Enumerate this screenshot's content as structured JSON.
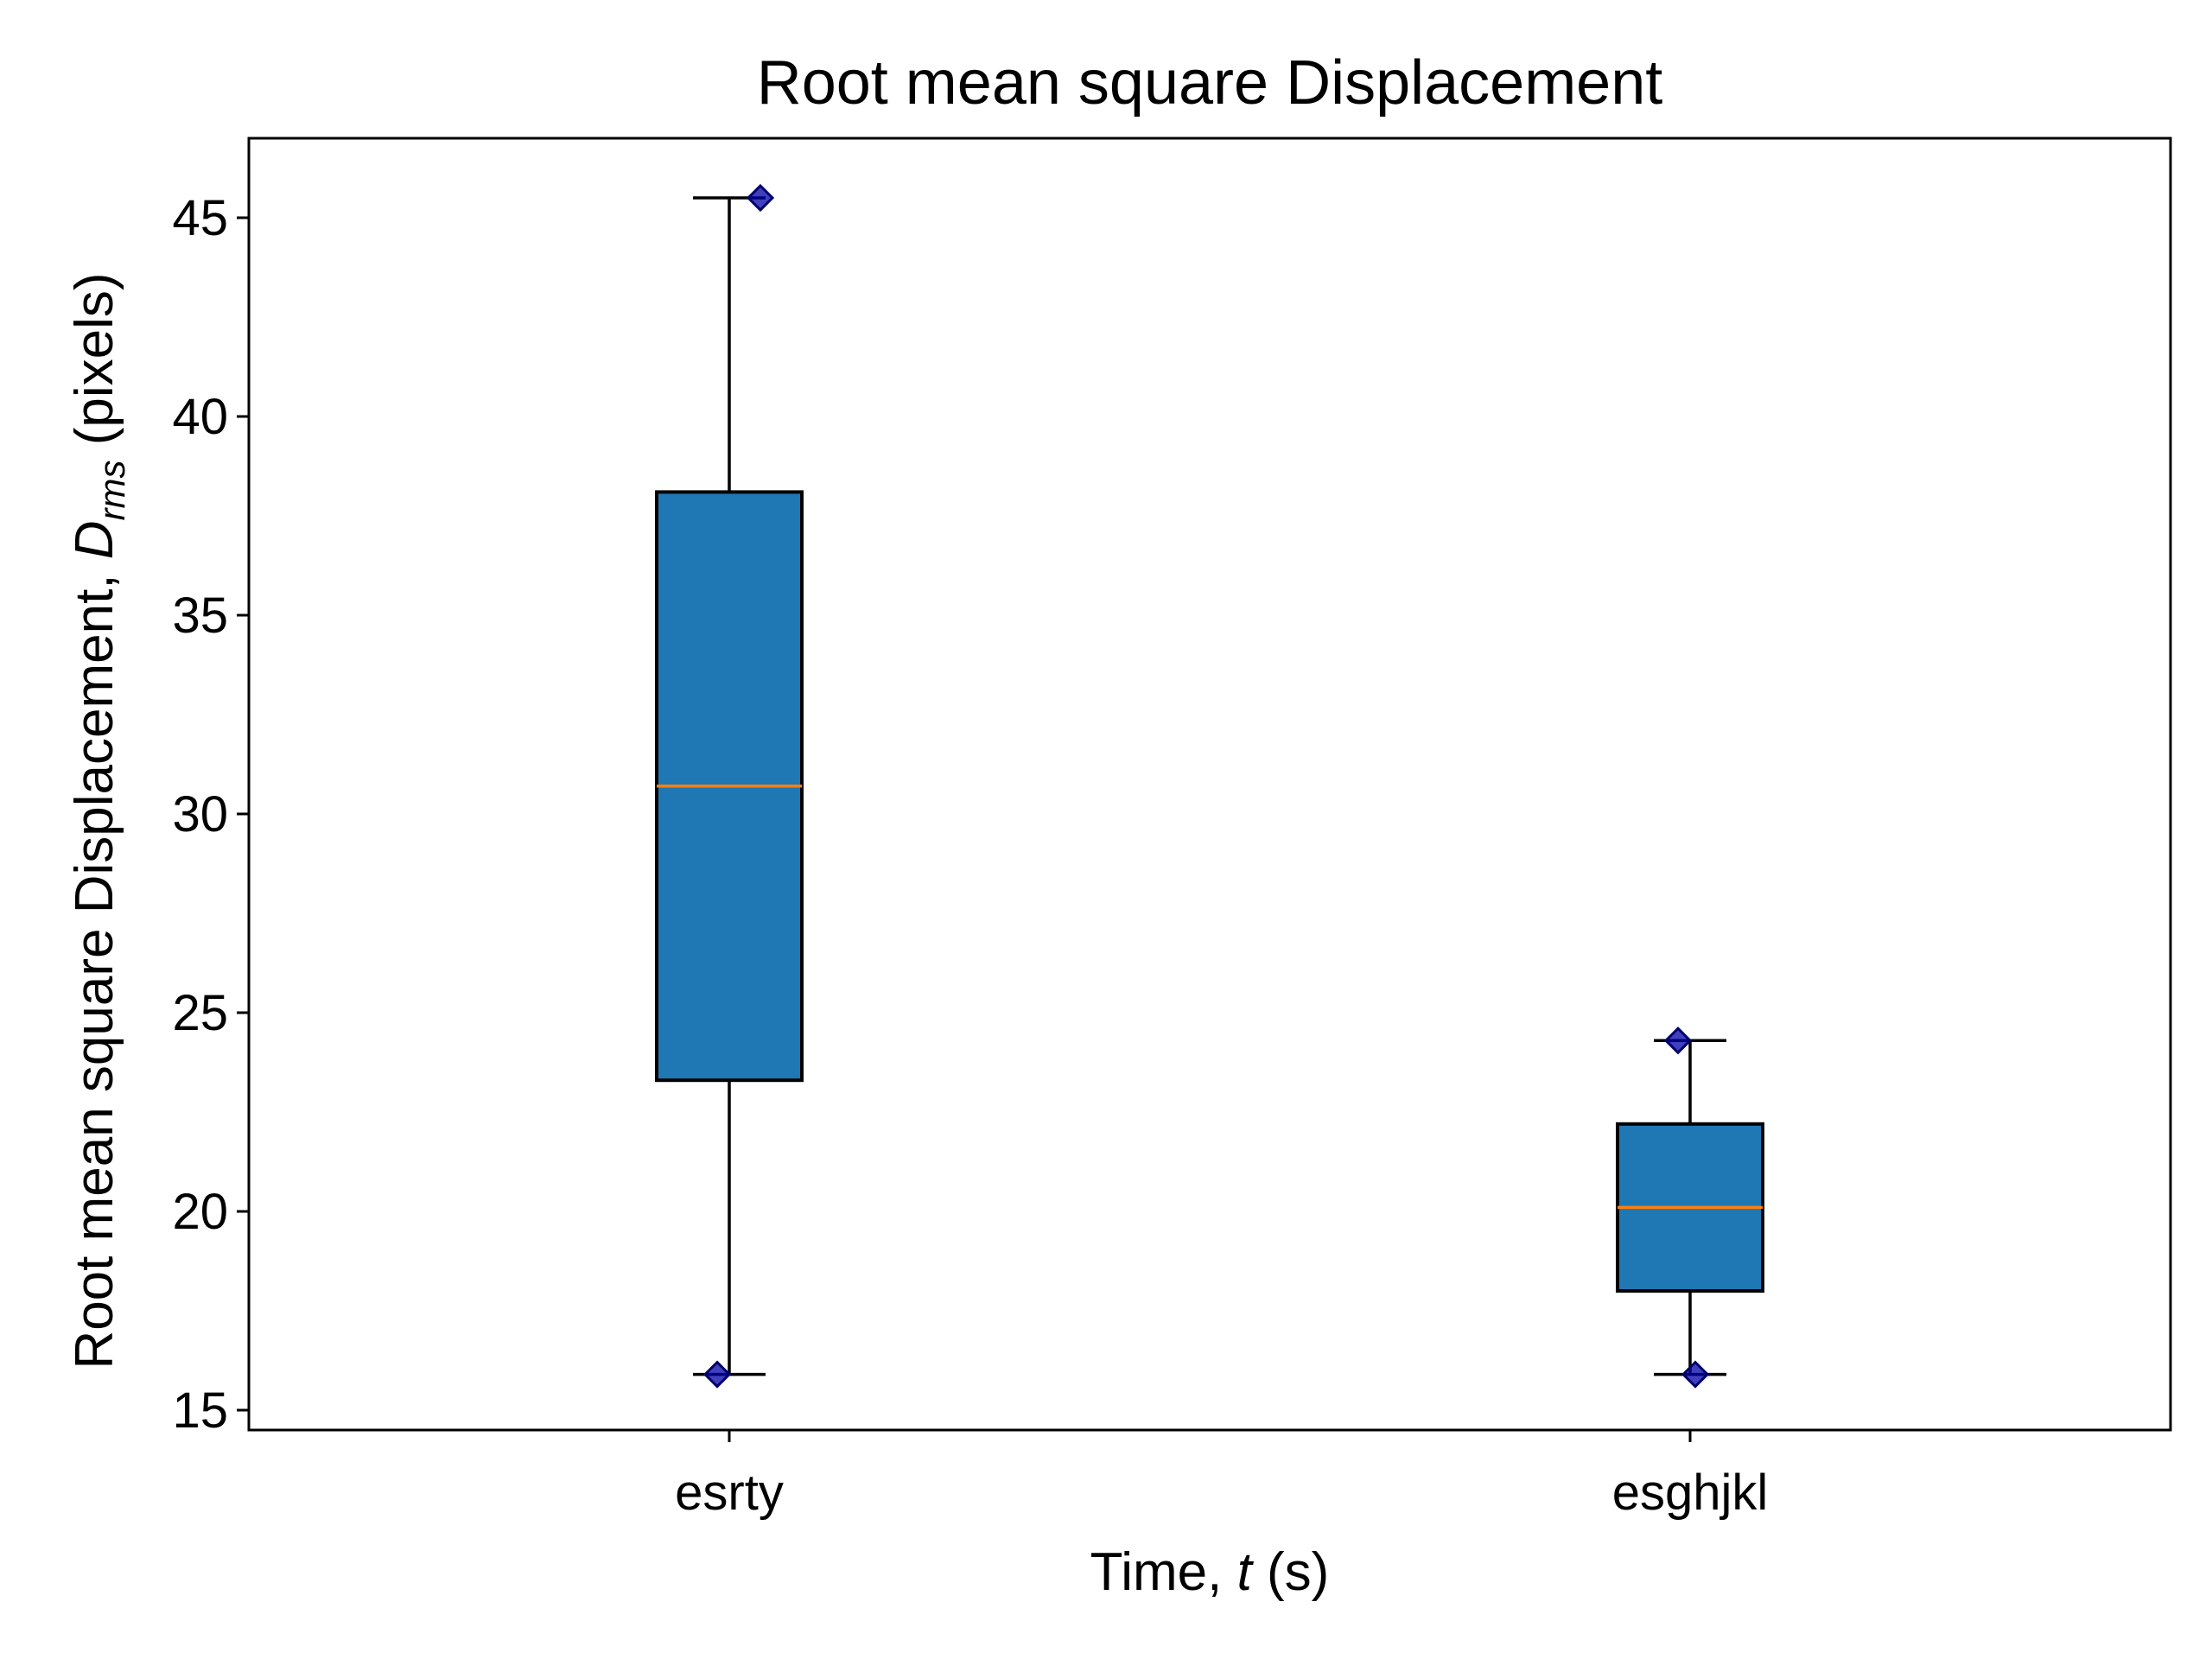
{
  "chart_data": {
    "type": "box",
    "title": "Root mean square Displacement",
    "xlabel": {
      "pre": "Time, ",
      "ital": "t",
      "post": " (s)"
    },
    "ylabel": {
      "pre": "Root mean square Displacement, ",
      "ital": "D",
      "sub": "rms",
      "post": " (pixels)"
    },
    "ylim": [
      14.5,
      47
    ],
    "yticks": [
      15,
      20,
      25,
      30,
      35,
      40,
      45
    ],
    "categories": [
      "esrty",
      "esghjkl"
    ],
    "boxes": [
      {
        "category": "esrty",
        "whisker_low": 15.9,
        "q1": 23.3,
        "median": 30.7,
        "q3": 38.1,
        "whisker_high": 45.5,
        "points": [
          15.9,
          45.5
        ]
      },
      {
        "category": "esghjkl",
        "whisker_low": 15.9,
        "q1": 18.0,
        "median": 20.1,
        "q3": 22.2,
        "whisker_high": 24.3,
        "points": [
          15.9,
          24.3
        ]
      }
    ],
    "grid": false,
    "colors": {
      "box_fill": "#1f77b4",
      "median": "#ff7f0e",
      "points": "#0000aa",
      "edge": "#000000"
    }
  }
}
